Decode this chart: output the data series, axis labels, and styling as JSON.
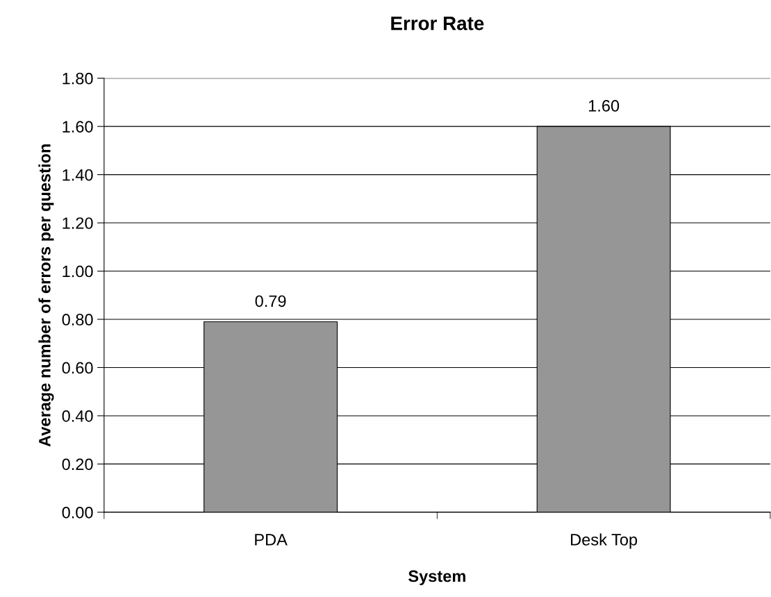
{
  "chart_data": {
    "type": "bar",
    "title": "Error Rate",
    "xlabel": "System",
    "ylabel": "Average number of errors per question",
    "categories": [
      "PDA",
      "Desk Top"
    ],
    "values": [
      0.79,
      1.6
    ],
    "color": "#969696",
    "value_labels": [
      "0.79",
      "1.60"
    ],
    "ylim": [
      0,
      1.8
    ],
    "yticks": [
      {
        "value": 0,
        "label": "0.00"
      },
      {
        "value": 0.2,
        "label": "0.20"
      },
      {
        "value": 0.4,
        "label": "0.40"
      },
      {
        "value": 0.6,
        "label": "0.60"
      },
      {
        "value": 0.8,
        "label": "0.80"
      },
      {
        "value": 1.0,
        "label": "1.00"
      },
      {
        "value": 1.2,
        "label": "1.20"
      },
      {
        "value": 1.4,
        "label": "1.40"
      },
      {
        "value": 1.6,
        "label": "1.60"
      },
      {
        "value": 1.8,
        "label": "1.80"
      }
    ],
    "grid": "y"
  }
}
